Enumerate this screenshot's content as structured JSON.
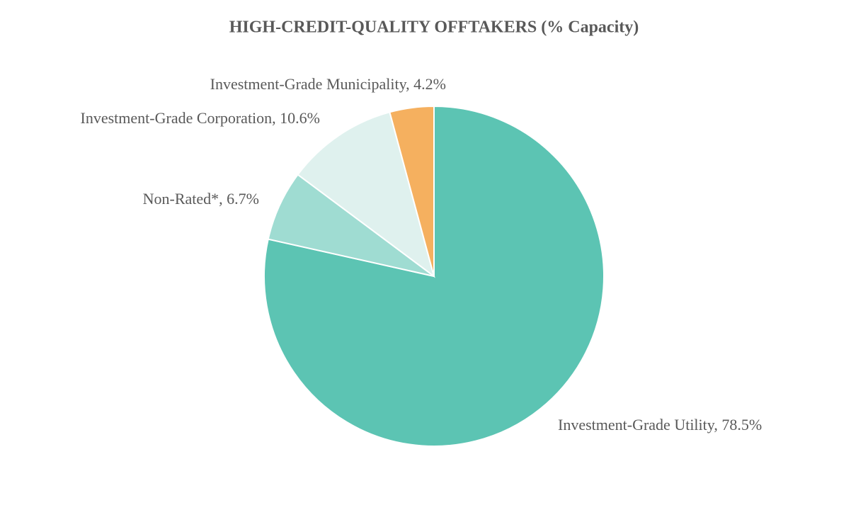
{
  "chart_data": {
    "type": "pie",
    "title": "HIGH-CREDIT-QUALITY OFFTAKERS (% Capacity)",
    "categories": [
      "Investment-Grade Utility, 78.5%",
      "Non-Rated*, 6.7%",
      "Investment-Grade Corporation, 10.6%",
      "Investment-Grade Municipality, 4.2%"
    ],
    "values": [
      78.5,
      6.7,
      10.6,
      4.2
    ],
    "colors": [
      "#5cc4b3",
      "#9fdcd2",
      "#dff1ee",
      "#f5b05f"
    ]
  }
}
